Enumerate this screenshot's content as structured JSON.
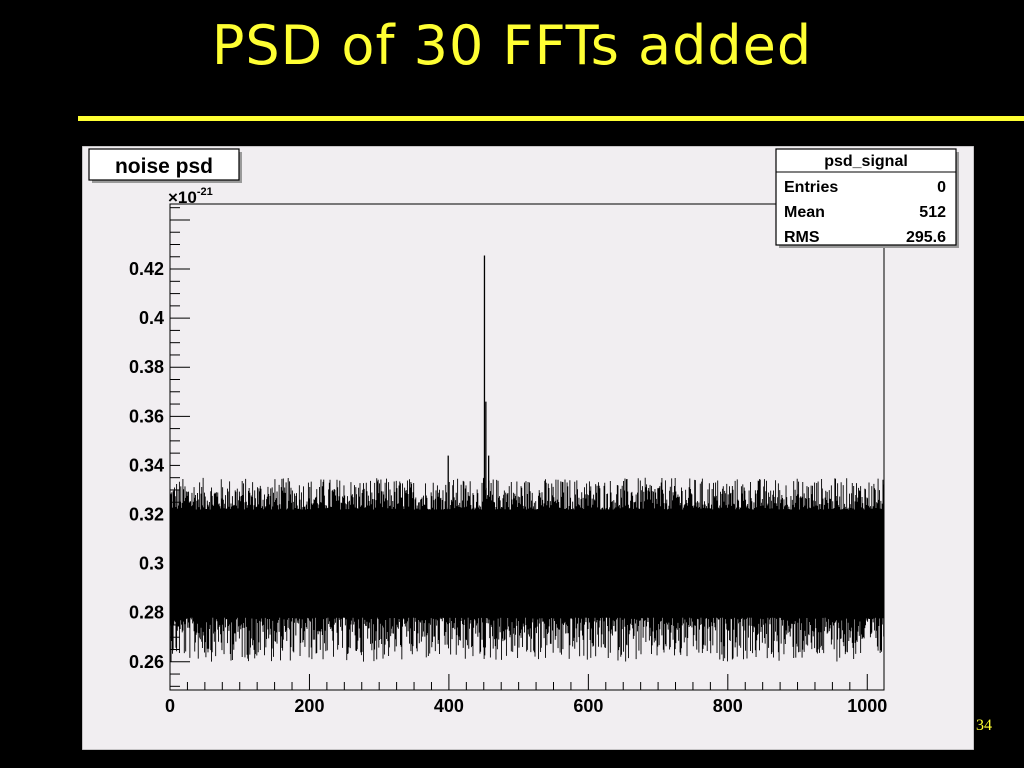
{
  "slide": {
    "title": "PSD of 30 FFTs added",
    "page_number": "34"
  },
  "colors": {
    "background": "#000000",
    "accent": "#ffff33",
    "plot_bg": "#f1eef1",
    "series": "#000000"
  },
  "chart_data": {
    "type": "line",
    "title": "noise psd",
    "xlabel": "",
    "ylabel": "",
    "y_exponent_label": "×10",
    "y_exponent_power": "-21",
    "xlim": [
      0,
      1024
    ],
    "ylim": [
      0.2485,
      0.4465
    ],
    "x_ticks": [
      0,
      200,
      400,
      600,
      800,
      1000
    ],
    "x_tick_labels": [
      "0",
      "200",
      "400",
      "600",
      "800",
      "1000"
    ],
    "y_ticks": [
      0.26,
      0.28,
      0.3,
      0.32,
      0.34,
      0.36,
      0.38,
      0.4,
      0.42
    ],
    "y_tick_labels": [
      "0.26",
      "0.28",
      "0.3",
      "0.32",
      "0.34",
      "0.36",
      "0.38",
      "0.4",
      "0.42"
    ],
    "grid": false,
    "series": [
      {
        "bins": 1024,
        "band_center": 0.3,
        "band_upper": 0.322,
        "band_lower": 0.278,
        "noise_range": [
          0.26,
          0.335
        ],
        "peaks": [
          {
            "x": 399,
            "y": 0.344
          },
          {
            "x": 451,
            "y": 0.4255
          },
          {
            "x": 453,
            "y": 0.366
          },
          {
            "x": 457,
            "y": 0.344
          }
        ]
      }
    ],
    "stats_box": {
      "title": "psd_signal",
      "rows": [
        {
          "label": "Entries",
          "value": "0"
        },
        {
          "label": "Mean",
          "value": "512"
        },
        {
          "label": "RMS",
          "value": "295.6"
        }
      ]
    }
  }
}
